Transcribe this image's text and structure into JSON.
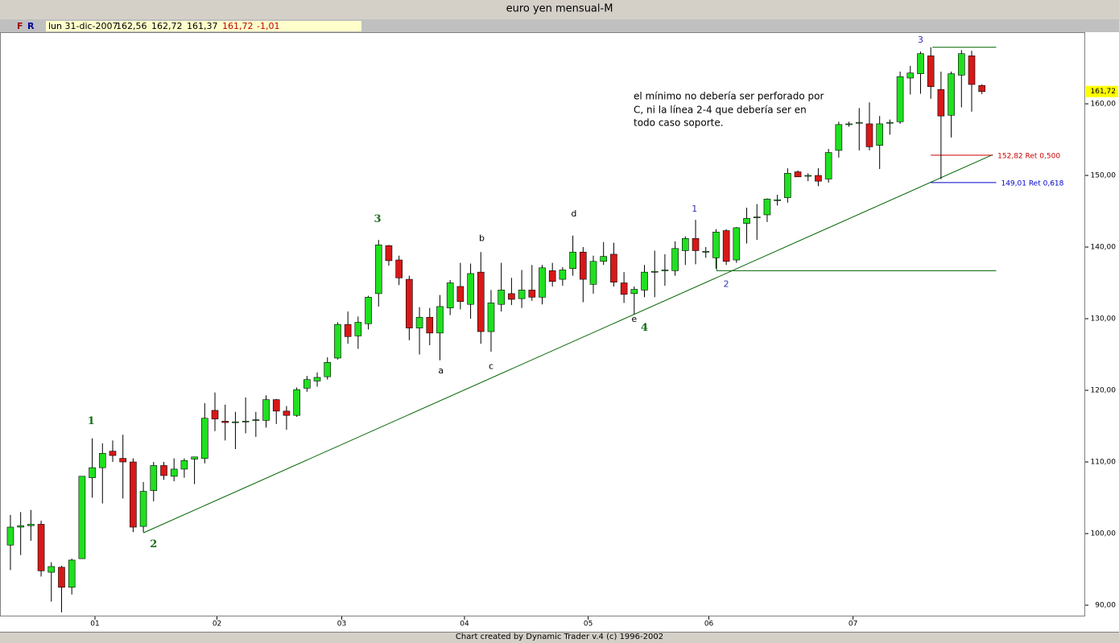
{
  "chart_data": {
    "type": "candlestick",
    "title": "euro yen mensual-M",
    "info": {
      "flags": [
        "F",
        "R"
      ],
      "date": "lun 31-dic-2007",
      "open": "162,56",
      "high": "162,72",
      "low": "161,37",
      "close": "161,72",
      "change": "-1,01"
    },
    "open": [
      98.4,
      100.9,
      101.1,
      101.3,
      94.6,
      95.3,
      92.5,
      96.5,
      107.8,
      109.2,
      111.5,
      110.5,
      110,
      101,
      106,
      109.5,
      108,
      109,
      110.4,
      110.5,
      117.2,
      115.7,
      115.6,
      115.6,
      115.8,
      115.8,
      118.7,
      117.1,
      116.5,
      120.3,
      121.3,
      121.9,
      124.5,
      129.2,
      127.6,
      129.3,
      133.5,
      140.2,
      138.2,
      135.5,
      128.7,
      130.2,
      128,
      131.5,
      134.5,
      132,
      136.5,
      128.2,
      132,
      133.5,
      132.8,
      134,
      133,
      136.7,
      135.5,
      137,
      139.3,
      134.8,
      138,
      139,
      135,
      133.5,
      134,
      136.5,
      136.7,
      136.7,
      139.5,
      141.2,
      139.3,
      138.5,
      142.3,
      138.2,
      143.3,
      144.1,
      144.5,
      146.5,
      146.9,
      150.5,
      149.9,
      150,
      149.5,
      153.5,
      157.1,
      157.3,
      157.2,
      154.2,
      157.3,
      157.5,
      163.6,
      164.2,
      166.7,
      162,
      158.4,
      164,
      166.7,
      162.56
    ],
    "high": [
      102.6,
      103,
      103.3,
      101.8,
      96,
      95.5,
      96.5,
      108,
      113.3,
      112.6,
      113,
      113.8,
      110.5,
      107.2,
      110,
      110,
      110.5,
      110.5,
      110.7,
      118.2,
      119.7,
      118,
      117,
      119,
      117,
      119.3,
      118.8,
      117.8,
      120.4,
      122,
      122.5,
      124.6,
      129.5,
      131,
      130.3,
      133.2,
      141,
      140.3,
      138.8,
      136,
      131.6,
      131.5,
      133.3,
      135.4,
      137.8,
      137.7,
      139.3,
      134,
      137.8,
      135.7,
      136.8,
      137.5,
      137.5,
      137.8,
      137.2,
      141.6,
      140,
      138.8,
      140.7,
      140.6,
      136.5,
      134.5,
      137.5,
      139.5,
      139,
      140.8,
      141.5,
      143.8,
      140,
      142.5,
      142.5,
      142.8,
      145.5,
      146,
      146.8,
      147.3,
      151,
      150.7,
      150.3,
      151,
      153.7,
      157.5,
      157.5,
      159.4,
      160.2,
      158.3,
      157.8,
      164.5,
      165.3,
      167.3,
      167.9,
      164.5,
      164.5,
      167.5,
      167.4,
      162.72
    ],
    "low": [
      94.9,
      97,
      99,
      94,
      90.5,
      89,
      91.5,
      96.5,
      105,
      104.2,
      110,
      104.9,
      100.2,
      100.2,
      104.5,
      107.5,
      107.3,
      107.8,
      106.9,
      109.8,
      114.3,
      113,
      111.8,
      114,
      113.5,
      114.8,
      115.3,
      114.5,
      116.3,
      119.8,
      120.5,
      121.5,
      124.3,
      126.5,
      125.8,
      128.5,
      131.7,
      137.4,
      134.7,
      127,
      125,
      126.3,
      124.2,
      130.5,
      131.3,
      130,
      126.5,
      125.4,
      131,
      131.9,
      131.5,
      132.5,
      132,
      134.5,
      134.6,
      136,
      132.3,
      133.5,
      137.5,
      134.5,
      132.2,
      130.6,
      133,
      133,
      134.6,
      136,
      137.5,
      137.6,
      138.5,
      137,
      137.5,
      137.8,
      140.5,
      141,
      143.5,
      145.8,
      146.2,
      149.8,
      149.2,
      148.5,
      149,
      152.5,
      156.8,
      153.5,
      153.5,
      150.9,
      155.7,
      157.2,
      161.3,
      161.4,
      160.7,
      149.5,
      155.3,
      159.5,
      158.9,
      161.37
    ],
    "close": [
      100.9,
      101.1,
      101.3,
      94.8,
      95.4,
      92.5,
      96.3,
      108,
      109.2,
      111.2,
      110.9,
      110,
      100.9,
      105.9,
      109.5,
      108.1,
      109,
      110.2,
      110.7,
      116.1,
      116,
      115.5,
      115.6,
      115.7,
      115.9,
      118.7,
      117.1,
      116.5,
      120.1,
      121.5,
      121.8,
      123.9,
      129.2,
      127.5,
      129.5,
      133,
      140.3,
      138.1,
      135.7,
      128.7,
      130.2,
      128,
      131.7,
      135,
      132.4,
      136.3,
      128.2,
      132.2,
      134,
      132.7,
      134,
      133,
      137.1,
      135.2,
      136.8,
      139.3,
      135.5,
      138,
      138.7,
      135.1,
      133.4,
      134.1,
      136.5,
      136.6,
      136.8,
      139.8,
      141.2,
      139.5,
      139.4,
      142.1,
      138,
      142.7,
      144,
      144.2,
      146.7,
      146.6,
      150.3,
      149.8,
      150,
      149.2,
      153.2,
      157.1,
      157.2,
      157.4,
      154,
      157.2,
      157.4,
      163.8,
      164.3,
      167,
      162.4,
      158.3,
      164.2,
      167,
      162.7,
      161.72
    ],
    "up_color": "#20e020",
    "down_color": "#d81818",
    "xlim": [
      -1.02,
      105.1
    ],
    "ylim": [
      88.43,
      170
    ],
    "xticks": [
      {
        "value": 8.27,
        "label": "01"
      },
      {
        "value": 20.2,
        "label": "02"
      },
      {
        "value": 32.4,
        "label": "03"
      },
      {
        "value": 44.4,
        "label": "04"
      },
      {
        "value": 56.5,
        "label": "05"
      },
      {
        "value": 68.3,
        "label": "06"
      },
      {
        "value": 82.4,
        "label": "07"
      }
    ],
    "yticks": [
      {
        "value": 90,
        "label": "90,00"
      },
      {
        "value": 100,
        "label": "100,00"
      },
      {
        "value": 110,
        "label": "110,00"
      },
      {
        "value": 120,
        "label": "120,00"
      },
      {
        "value": 130,
        "label": "130,00"
      },
      {
        "value": 140,
        "label": "140,00"
      },
      {
        "value": 150,
        "label": "150,00"
      },
      {
        "value": 160,
        "label": "160,00"
      }
    ],
    "last_price": {
      "value": 161.72,
      "label": "161,72"
    },
    "lines": [
      {
        "x": [
          13,
          96.06
        ],
        "y": [
          100.1,
          152.9
        ],
        "color": "#006400"
      },
      {
        "x": [
          69.06,
          69.06
        ],
        "y": [
          138.5,
          136.7
        ],
        "color": "#006400"
      },
      {
        "x": [
          69.06,
          96.4
        ],
        "y": [
          136.7,
          136.7
        ],
        "color": "#006400"
      },
      {
        "x": [
          90.16,
          96.4
        ],
        "y": [
          167.9,
          167.9
        ],
        "color": "#006400"
      }
    ],
    "fib_levels": [
      {
        "value": 152.82,
        "label": "152,82 Ret 0,500",
        "color": "#cc0000",
        "x": [
          90,
          96.06
        ]
      },
      {
        "value": 149.01,
        "label": "149,01 Ret 0,618",
        "color": "#0000cc",
        "x": [
          90,
          96.4
        ]
      }
    ],
    "wave_labels": [
      {
        "text": "1",
        "x": 7.9,
        "y": 115.7,
        "color": "#1a6e1a"
      },
      {
        "text": "2",
        "x": 14,
        "y": 98.5,
        "color": "#1a6e1a"
      },
      {
        "text": "3",
        "x": 35.9,
        "y": 143.9,
        "color": "#1a6e1a"
      },
      {
        "text": "4",
        "x": 62,
        "y": 128.7,
        "color": "#1a6e1a"
      },
      {
        "text": "3",
        "x": 89,
        "y": 168.9,
        "color": "#3030b0"
      },
      {
        "text": "a",
        "x": 42.1,
        "y": 122.7,
        "color": "#000000"
      },
      {
        "text": "b",
        "x": 46.1,
        "y": 141.2,
        "color": "#000000"
      },
      {
        "text": "c",
        "x": 47,
        "y": 123.3,
        "color": "#000000"
      },
      {
        "text": "d",
        "x": 55.1,
        "y": 144.6,
        "color": "#000000"
      },
      {
        "text": "e",
        "x": 61,
        "y": 129.9,
        "color": "#000000"
      },
      {
        "text": "1",
        "x": 66.9,
        "y": 145.3,
        "color": "#3030b0"
      },
      {
        "text": "2",
        "x": 70,
        "y": 134.8,
        "color": "#3030b0"
      }
    ],
    "note": [
      "el mínimo no debería ser perforado por",
      "C, ni la línea 2-4 que debería ser en",
      "todo caso soporte."
    ],
    "footer": "Chart created by Dynamic Trader v.4  (c) 1996-2002"
  }
}
